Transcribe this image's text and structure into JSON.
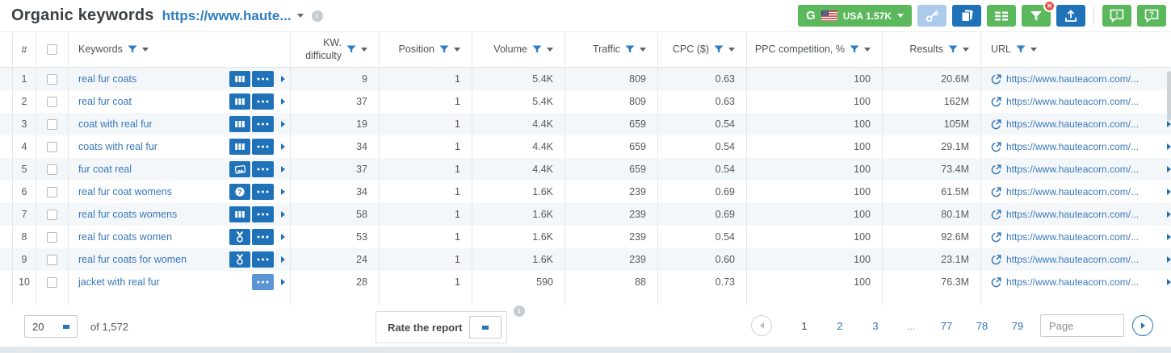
{
  "header": {
    "title": "Organic keywords",
    "domain_link": "https://www.haute...",
    "toolbar": {
      "search_engine_label": "USA 1.57K",
      "google_logo": "G",
      "filter_badge": "✕",
      "feedback_glyph": "!",
      "help_glyph": "?"
    }
  },
  "table": {
    "columns": {
      "num": "#",
      "keywords": "Keywords",
      "kw_difficulty": "KW. difficulty",
      "position": "Position",
      "volume": "Volume",
      "traffic": "Traffic",
      "cpc": "CPC ($)",
      "ppc_competition": "PPC competition, %",
      "results": "Results",
      "url": "URL"
    },
    "rows": [
      {
        "num": "1",
        "keyword": "real fur coats",
        "serp_feature": "sitelinks-icon",
        "kd": "9",
        "position": "1",
        "volume": "5.4K",
        "traffic": "809",
        "cpc": "0.63",
        "ppc": "100",
        "results": "20.6M",
        "url": "https://www.hauteacorn.com/..."
      },
      {
        "num": "2",
        "keyword": "real fur coat",
        "serp_feature": "sitelinks-icon",
        "kd": "37",
        "position": "1",
        "volume": "5.4K",
        "traffic": "809",
        "cpc": "0.63",
        "ppc": "100",
        "results": "162M",
        "url": "https://www.hauteacorn.com/..."
      },
      {
        "num": "3",
        "keyword": "coat with real fur",
        "serp_feature": "sitelinks-icon",
        "kd": "19",
        "position": "1",
        "volume": "4.4K",
        "traffic": "659",
        "cpc": "0.54",
        "ppc": "100",
        "results": "105M",
        "url": "https://www.hauteacorn.com/..."
      },
      {
        "num": "4",
        "keyword": "coats with real fur",
        "serp_feature": "sitelinks-icon",
        "kd": "34",
        "position": "1",
        "volume": "4.4K",
        "traffic": "659",
        "cpc": "0.54",
        "ppc": "100",
        "results": "29.1M",
        "url": "https://www.hauteacorn.com/..."
      },
      {
        "num": "5",
        "keyword": "fur coat real",
        "serp_feature": "images-icon",
        "kd": "37",
        "position": "1",
        "volume": "4.4K",
        "traffic": "659",
        "cpc": "0.54",
        "ppc": "100",
        "results": "73.4M",
        "url": "https://www.hauteacorn.com/..."
      },
      {
        "num": "6",
        "keyword": "real fur coat womens",
        "serp_feature": "question-icon",
        "kd": "34",
        "position": "1",
        "volume": "1.6K",
        "traffic": "239",
        "cpc": "0.69",
        "ppc": "100",
        "results": "61.5M",
        "url": "https://www.hauteacorn.com/..."
      },
      {
        "num": "7",
        "keyword": "real fur coats womens",
        "serp_feature": "sitelinks-icon",
        "kd": "58",
        "position": "1",
        "volume": "1.6K",
        "traffic": "239",
        "cpc": "0.69",
        "ppc": "100",
        "results": "80.1M",
        "url": "https://www.hauteacorn.com/..."
      },
      {
        "num": "8",
        "keyword": "real fur coats women",
        "serp_feature": "medal-icon",
        "kd": "53",
        "position": "1",
        "volume": "1.6K",
        "traffic": "239",
        "cpc": "0.54",
        "ppc": "100",
        "results": "92.6M",
        "url": "https://www.hauteacorn.com/..."
      },
      {
        "num": "9",
        "keyword": "real fur coats for women",
        "serp_feature": "medal-icon",
        "kd": "24",
        "position": "1",
        "volume": "1.6K",
        "traffic": "239",
        "cpc": "0.60",
        "ppc": "100",
        "results": "23.1M",
        "url": "https://www.hauteacorn.com/..."
      },
      {
        "num": "10",
        "keyword": "jacket with real fur",
        "serp_feature": null,
        "more_style": "light",
        "kd": "28",
        "position": "1",
        "volume": "590",
        "traffic": "88",
        "cpc": "0.73",
        "ppc": "100",
        "results": "76.3M",
        "url": "https://www.hauteacorn.com/..."
      }
    ]
  },
  "footer": {
    "page_size": "20",
    "total_label": "of 1,572",
    "rate_label": "Rate the report",
    "pagination": {
      "pages": [
        "1",
        "2",
        "3",
        "...",
        "77",
        "78",
        "79"
      ],
      "current_page": "1",
      "page_input_placeholder": "Page"
    }
  },
  "colors": {
    "accent_green": "#5cb85c",
    "accent_blue": "#1f72b8",
    "link_blue": "#3878ba",
    "badge_red": "#e2574c",
    "stripe": "#f4f7fa"
  }
}
